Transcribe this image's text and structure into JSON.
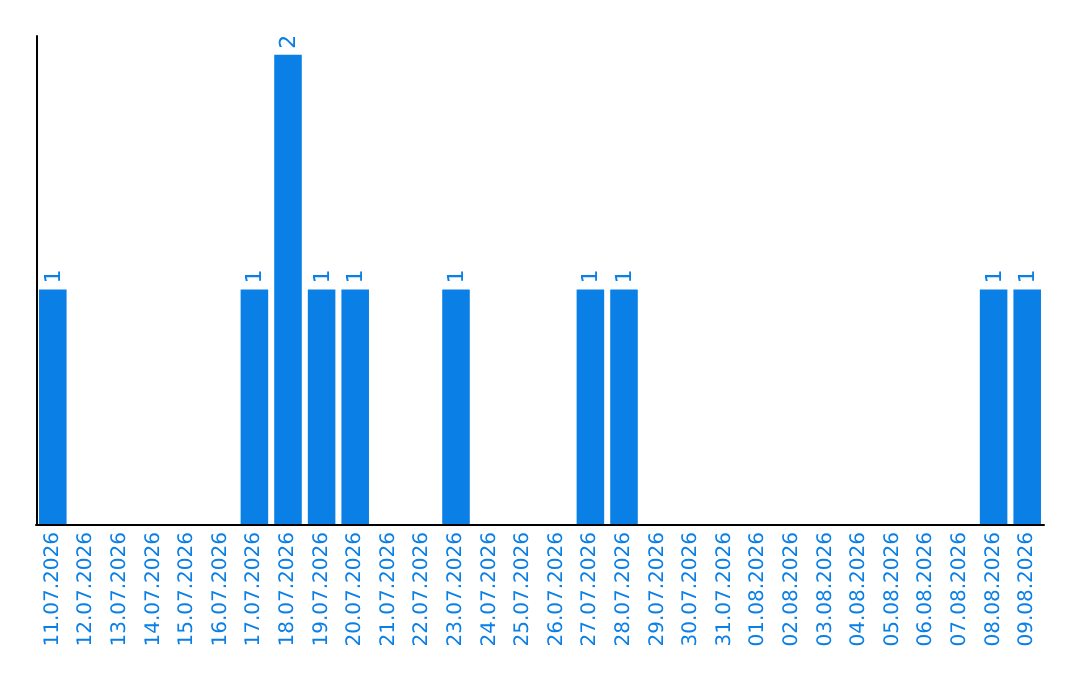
{
  "chart_data": {
    "type": "bar",
    "categories": [
      "11.07.2026",
      "12.07.2026",
      "13.07.2026",
      "14.07.2026",
      "15.07.2026",
      "16.07.2026",
      "17.07.2026",
      "18.07.2026",
      "19.07.2026",
      "20.07.2026",
      "21.07.2026",
      "22.07.2026",
      "23.07.2026",
      "24.07.2026",
      "25.07.2026",
      "26.07.2026",
      "27.07.2026",
      "28.07.2026",
      "29.07.2026",
      "30.07.2026",
      "31.07.2026",
      "01.08.2026",
      "02.08.2026",
      "03.08.2026",
      "04.08.2026",
      "05.08.2026",
      "06.08.2026",
      "07.08.2026",
      "08.08.2026",
      "09.08.2026"
    ],
    "values": [
      1,
      0,
      0,
      0,
      0,
      0,
      1,
      2,
      1,
      1,
      0,
      0,
      1,
      0,
      0,
      0,
      1,
      1,
      0,
      0,
      0,
      0,
      0,
      0,
      0,
      0,
      0,
      0,
      1,
      1
    ],
    "value_labels": [
      "1",
      null,
      null,
      null,
      null,
      null,
      "1",
      "2",
      "1",
      "1",
      null,
      null,
      "1",
      null,
      null,
      null,
      "1",
      "1",
      null,
      null,
      null,
      null,
      null,
      null,
      null,
      null,
      null,
      null,
      "1",
      "1"
    ],
    "color": "#0a7fe6",
    "grid": false,
    "tick_labels": "x"
  }
}
